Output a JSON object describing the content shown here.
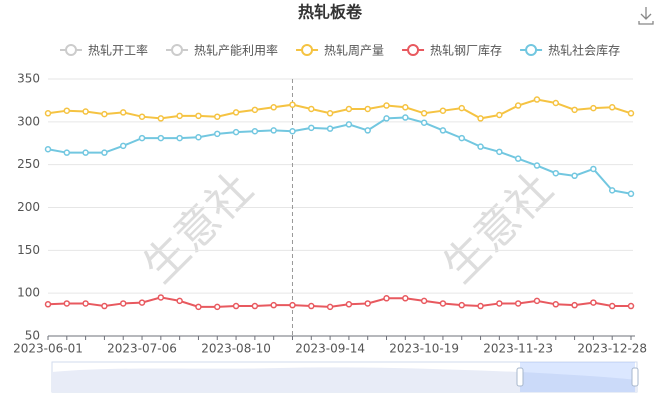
{
  "chart_data": {
    "type": "line",
    "title": "热轧板卷",
    "watermark": "生意社",
    "inactive_legend": [
      "热轧开工率",
      "热轧产能利用率"
    ],
    "inactive_color": "#cccccc",
    "categories": [
      "2023-06-01",
      null,
      null,
      null,
      null,
      "2023-07-06",
      null,
      null,
      null,
      null,
      "2023-08-10",
      null,
      null,
      null,
      null,
      "2023-09-14",
      null,
      null,
      null,
      null,
      "2023-10-19",
      null,
      null,
      null,
      null,
      "2023-11-23",
      null,
      null,
      null,
      null,
      "2023-12-28",
      null
    ],
    "series": [
      {
        "name": "热轧周产量",
        "color": "#f5c342",
        "values": [
          310,
          313,
          312,
          309,
          311,
          306,
          304,
          307,
          307,
          306,
          311,
          314,
          317,
          320,
          315,
          310,
          315,
          315,
          319,
          317,
          310,
          313,
          316,
          304,
          308,
          319,
          326,
          322,
          314,
          316,
          317,
          310
        ]
      },
      {
        "name": "热轧钢厂库存",
        "color": "#e8595f",
        "values": [
          87,
          88,
          88,
          85,
          88,
          89,
          95,
          91,
          84,
          84,
          85,
          85,
          86,
          86,
          85,
          84,
          87,
          88,
          94,
          94,
          91,
          88,
          86,
          85,
          88,
          88,
          91,
          87,
          86,
          89,
          85,
          85
        ]
      },
      {
        "name": "热轧社会库存",
        "color": "#72c7e0",
        "values": [
          268,
          264,
          264,
          264,
          272,
          281,
          281,
          281,
          282,
          286,
          288,
          289,
          290,
          289,
          293,
          292,
          297,
          290,
          304,
          305,
          299,
          290,
          281,
          271,
          265,
          257,
          249,
          240,
          237,
          245,
          220,
          216
        ]
      }
    ],
    "ylim": [
      50,
      350
    ],
    "yticks": [
      50,
      100,
      150,
      200,
      250,
      300,
      350
    ],
    "grid": true
  }
}
